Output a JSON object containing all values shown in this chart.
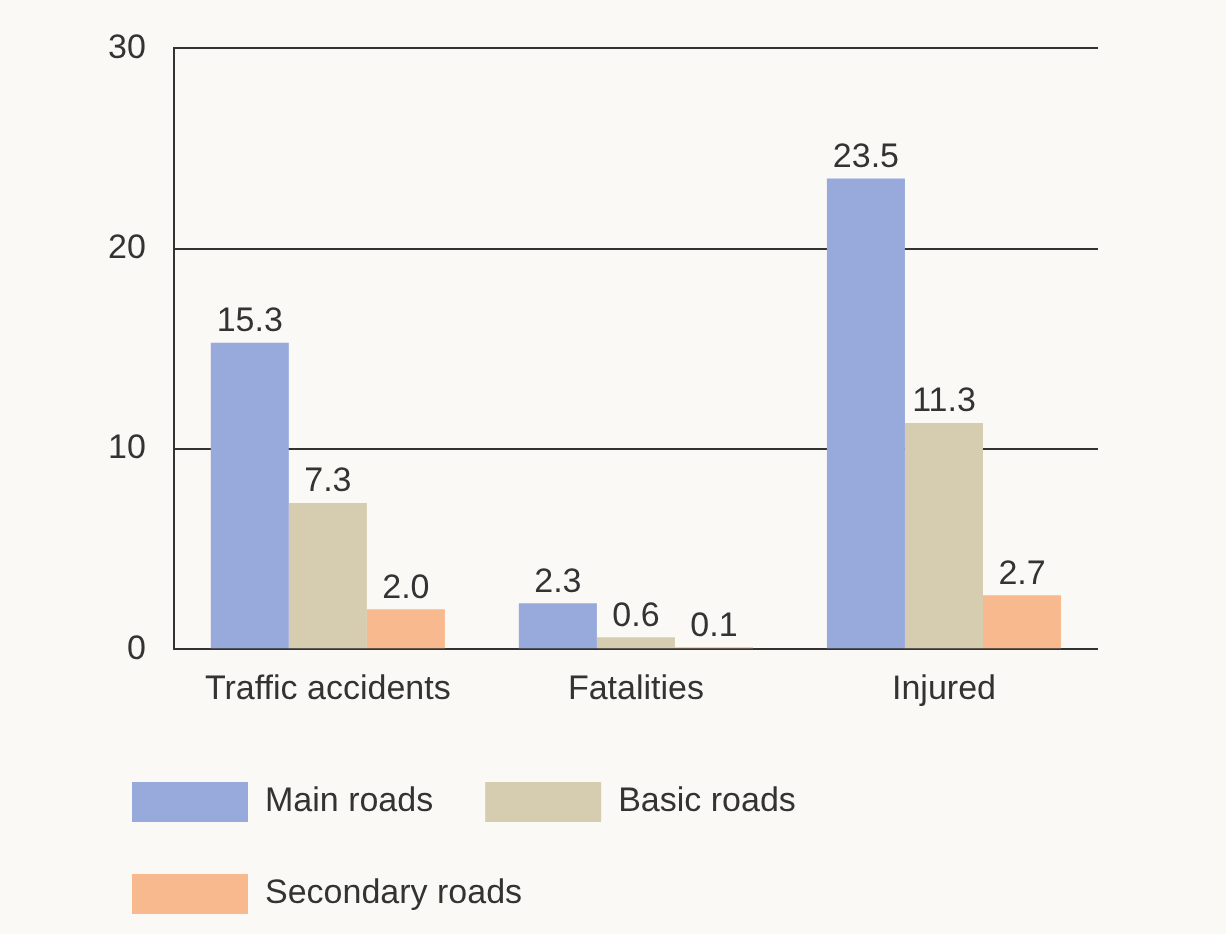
{
  "chart_data": {
    "type": "bar",
    "categories": [
      "Traffic accidents",
      "Fatalities",
      "Injured"
    ],
    "series": [
      {
        "name": "Main roads",
        "color": "#98a9db",
        "values": [
          15.3,
          2.3,
          23.5
        ],
        "value_labels": [
          "15.3",
          "2.3",
          "23.5"
        ]
      },
      {
        "name": "Basic roads",
        "color": "#d6ccb0",
        "values": [
          7.3,
          0.6,
          11.3
        ],
        "value_labels": [
          "7.3",
          "0.6",
          "11.3"
        ]
      },
      {
        "name": "Secondary roads",
        "color": "#f9b98e",
        "values": [
          2.0,
          0.1,
          2.7
        ],
        "value_labels": [
          "2.0",
          "0.1",
          "2.7"
        ]
      }
    ],
    "ylim": [
      0,
      30
    ],
    "yticks": [
      0,
      10,
      20,
      30
    ],
    "grid": "y",
    "legend": "bottom"
  }
}
